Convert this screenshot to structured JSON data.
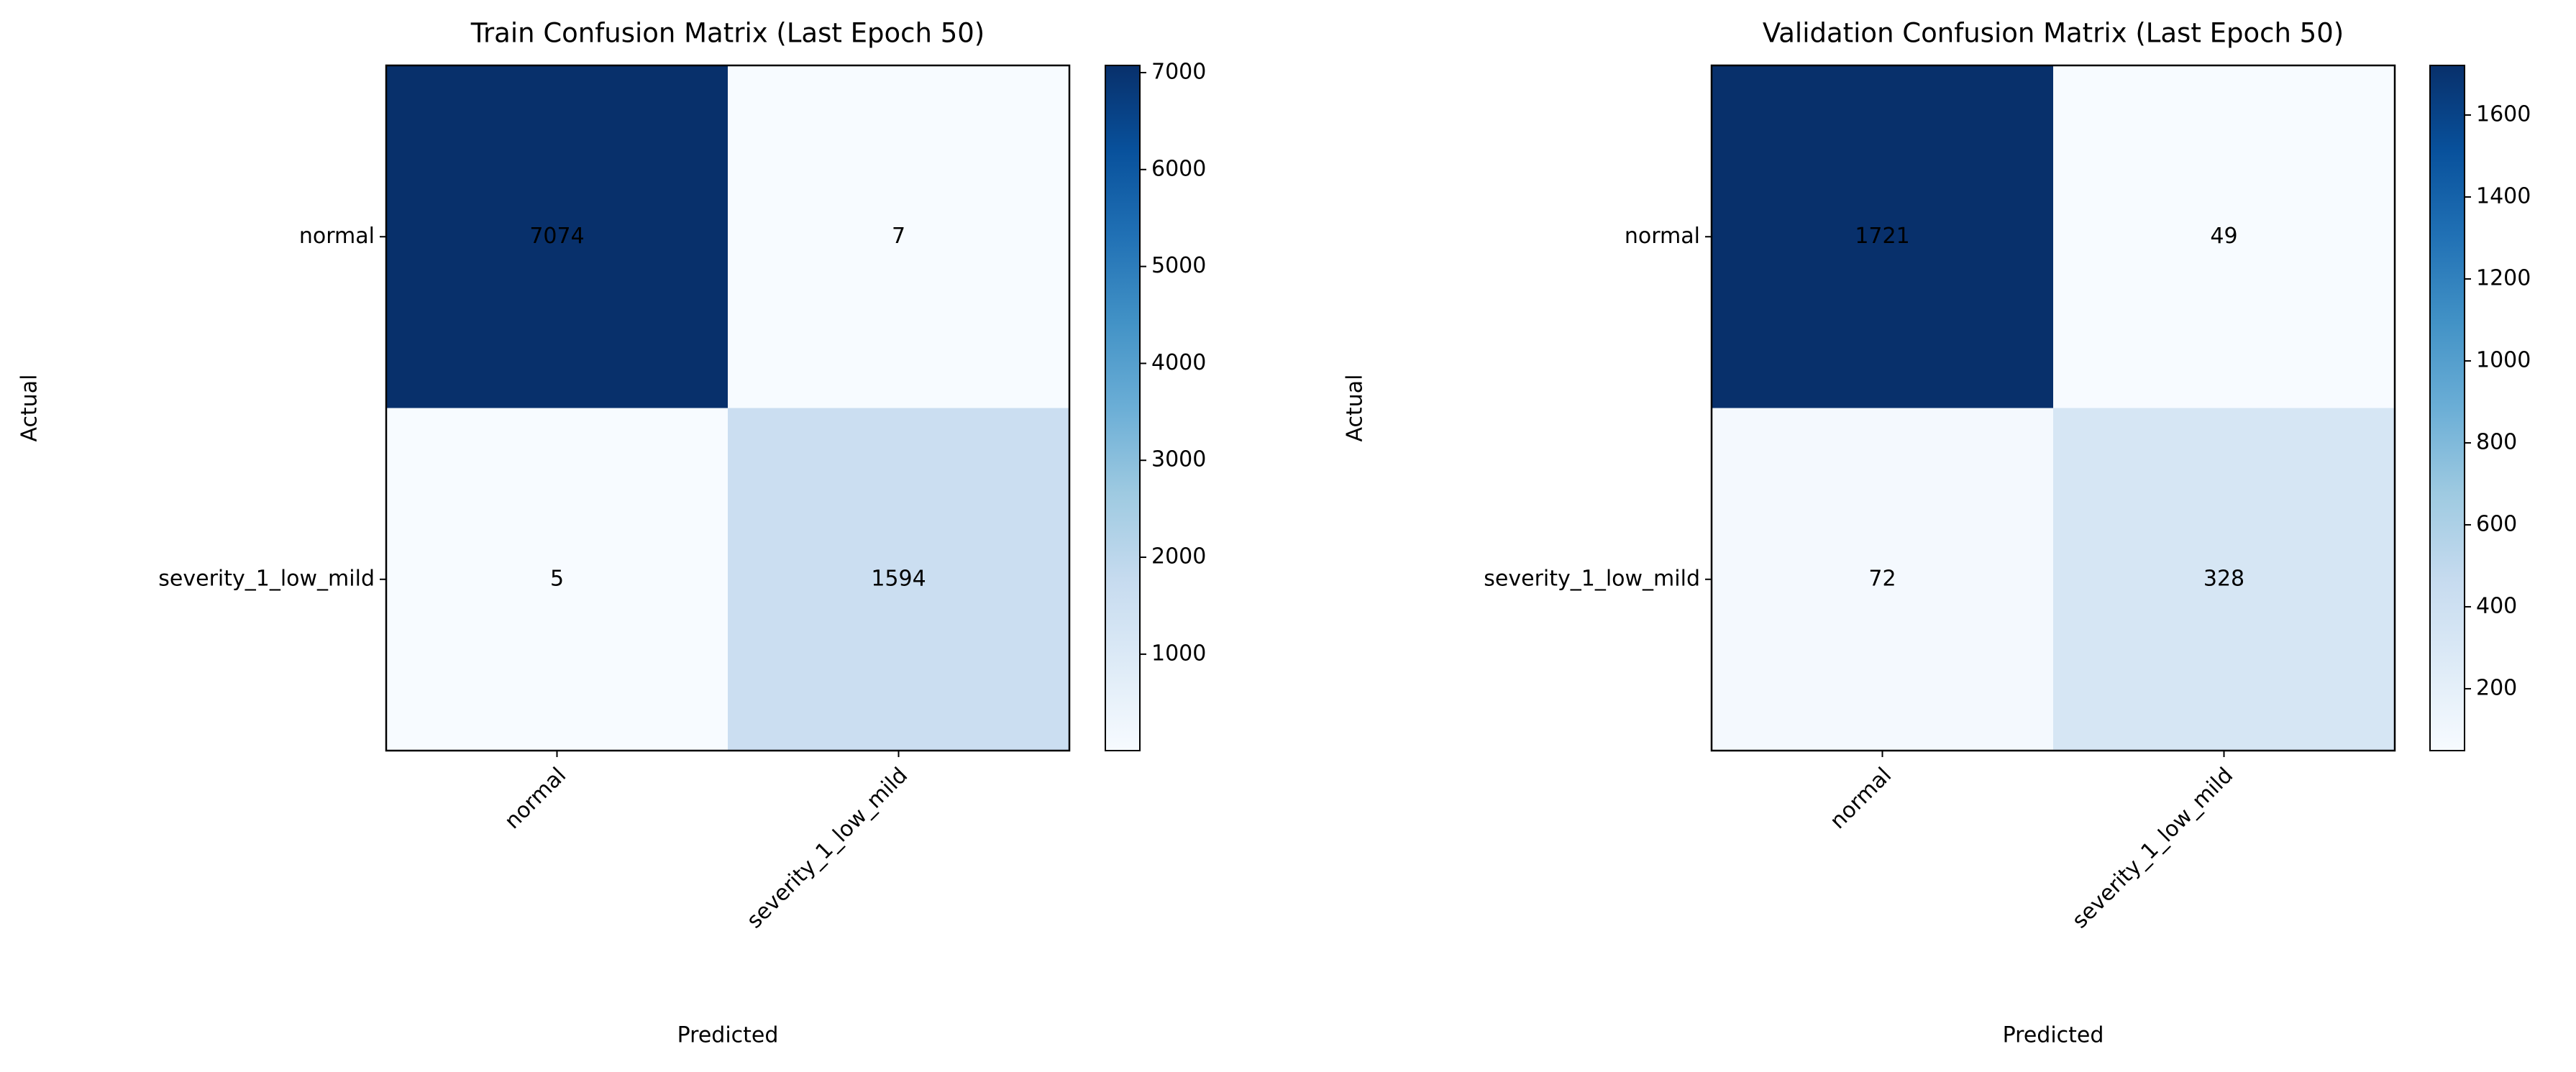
{
  "chart_data": [
    {
      "type": "heatmap",
      "title": "Train Confusion Matrix (Last Epoch 50)",
      "xlabel": "Predicted",
      "ylabel": "Actual",
      "x_categories": [
        "normal",
        "severity_1_low_mild"
      ],
      "y_categories": [
        "normal",
        "severity_1_low_mild"
      ],
      "values": [
        [
          7074,
          7
        ],
        [
          5,
          1594
        ]
      ],
      "cmap": "Blues",
      "clim": [
        5,
        7074
      ],
      "cticks": [
        1000,
        2000,
        3000,
        4000,
        5000,
        6000,
        7000
      ]
    },
    {
      "type": "heatmap",
      "title": "Validation Confusion Matrix (Last Epoch 50)",
      "xlabel": "Predicted",
      "ylabel": "Actual",
      "x_categories": [
        "normal",
        "severity_1_low_mild"
      ],
      "y_categories": [
        "normal",
        "severity_1_low_mild"
      ],
      "values": [
        [
          1721,
          49
        ],
        [
          72,
          328
        ]
      ],
      "cmap": "Blues",
      "clim": [
        49,
        1721
      ],
      "cticks": [
        200,
        400,
        600,
        800,
        1000,
        1200,
        1400,
        1600
      ]
    }
  ]
}
